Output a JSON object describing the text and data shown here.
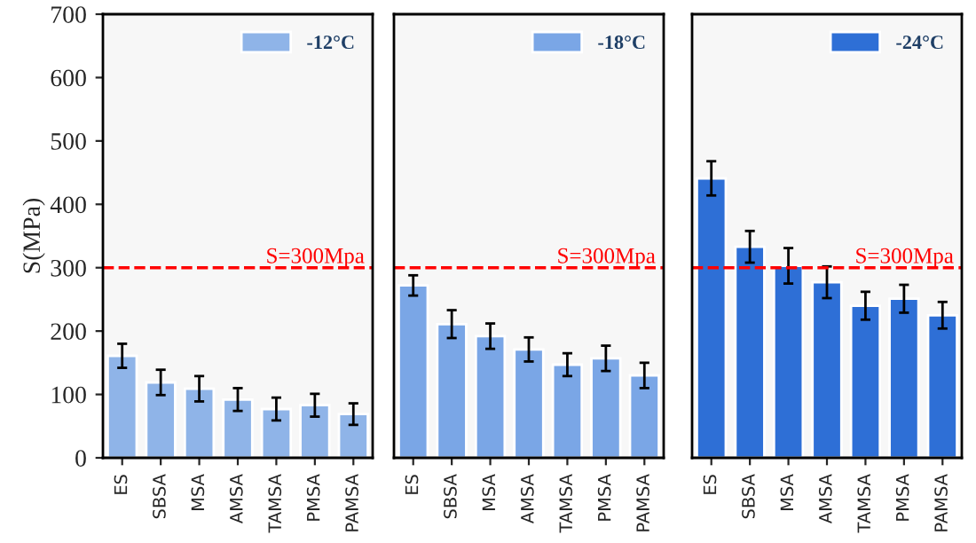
{
  "chart_data": [
    {
      "type": "bar",
      "ylabel": "S(MPa)",
      "categories": [
        "ES",
        "SBSA",
        "MSA",
        "AMSA",
        "TAMSA",
        "PMSA",
        "PAMSA"
      ],
      "ylim": [
        0,
        700
      ],
      "yticks": [
        0,
        100,
        200,
        300,
        400,
        500,
        600,
        700
      ],
      "legend": "top right",
      "grid": false,
      "series": [
        {
          "name": "-12°C",
          "color": "#8fb4e8",
          "values": [
            161,
            119,
            109,
            92,
            77,
            83,
            69
          ],
          "errors": [
            19,
            20,
            20,
            18,
            18,
            18,
            17
          ]
        }
      ],
      "ref_lines": [
        {
          "axis": "y",
          "value": 300,
          "label": "S=300Mpa",
          "color": "#ff0000",
          "line_style": "dashed"
        }
      ]
    },
    {
      "type": "bar",
      "categories": [
        "ES",
        "SBSA",
        "MSA",
        "AMSA",
        "TAMSA",
        "PMSA",
        "PAMSA"
      ],
      "ylim": [
        0,
        700
      ],
      "tick_labels": "x",
      "legend": "top right",
      "grid": false,
      "series": [
        {
          "name": "-18°C",
          "color": "#7aa6e6",
          "values": [
            272,
            211,
            192,
            171,
            147,
            157,
            130
          ],
          "errors": [
            16,
            22,
            20,
            19,
            18,
            20,
            20
          ]
        }
      ],
      "ref_lines": [
        {
          "axis": "y",
          "value": 300,
          "label": "S=300Mpa",
          "color": "#ff0000",
          "line_style": "dashed"
        }
      ]
    },
    {
      "type": "bar",
      "categories": [
        "ES",
        "SBSA",
        "MSA",
        "AMSA",
        "TAMSA",
        "PMSA",
        "PAMSA"
      ],
      "ylim": [
        0,
        700
      ],
      "tick_labels": "x",
      "legend": "top right",
      "grid": false,
      "series": [
        {
          "name": "-24°C",
          "color": "#2e6fd6",
          "values": [
            441,
            333,
            303,
            277,
            240,
            251,
            225
          ],
          "errors": [
            27,
            25,
            28,
            25,
            22,
            22,
            21
          ]
        }
      ],
      "ref_lines": [
        {
          "axis": "y",
          "value": 300,
          "label": "S=300Mpa",
          "color": "#ff0000",
          "line_style": "dashed"
        }
      ]
    }
  ]
}
